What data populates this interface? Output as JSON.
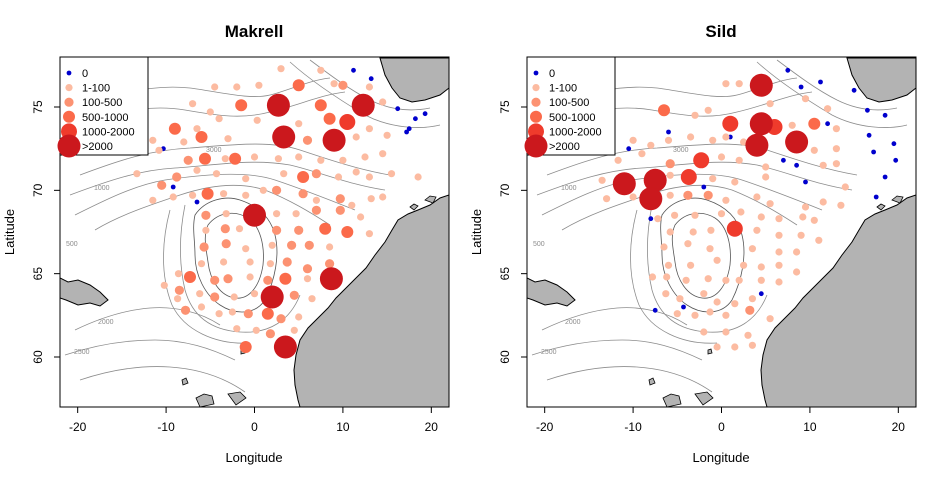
{
  "colors": {
    "zero": "#0000CD",
    "c1_100": "#FCBBA1",
    "c100_500": "#FC9272",
    "c500_1000": "#FB6A4A",
    "c1000_2000": "#EF3B2C",
    "c2000": "#CB181D",
    "land": "#B3B3B3",
    "contour": "#8C8C8C"
  },
  "legend": {
    "entries": [
      {
        "label": "0",
        "cls": 0
      },
      {
        "label": "1-100",
        "cls": 1
      },
      {
        "label": "100-500",
        "cls": 2
      },
      {
        "label": "500-1000",
        "cls": 3
      },
      {
        "label": "1000-2000",
        "cls": 4
      },
      {
        "label": ">2000",
        "cls": 5
      }
    ]
  },
  "axes": {
    "xlabel": "Longitude",
    "ylabel": "Latitude",
    "xlim": [
      -22,
      22
    ],
    "ylim": [
      57,
      78
    ],
    "xticks": [
      -20,
      -10,
      0,
      10,
      20
    ],
    "yticks": [
      60,
      65,
      70,
      75
    ]
  },
  "contour_labels": [
    "3000",
    "2000",
    "1000",
    "500",
    "2500"
  ],
  "chart_data": [
    {
      "type": "scatter",
      "title": "Makrell",
      "xlabel": "Longitude",
      "ylabel": "Latitude",
      "xlim": [
        -22,
        22
      ],
      "ylim": [
        57,
        78
      ],
      "points": [
        [
          3,
          77.3,
          1
        ],
        [
          7.5,
          77.2,
          1
        ],
        [
          9,
          76.4,
          1
        ],
        [
          11.2,
          77.2,
          0
        ],
        [
          13.2,
          76.7,
          0
        ],
        [
          16.2,
          74.9,
          0
        ],
        [
          19.3,
          74.6,
          0
        ],
        [
          18.2,
          74.3,
          0
        ],
        [
          17.5,
          73.7,
          0
        ],
        [
          17.2,
          73.5,
          0
        ],
        [
          -10.3,
          72.5,
          0
        ],
        [
          -6.5,
          69.3,
          0
        ],
        [
          -9.2,
          70.2,
          0
        ],
        [
          -4.5,
          76.2,
          1
        ],
        [
          -2,
          76.2,
          1
        ],
        [
          0.5,
          76.3,
          1
        ],
        [
          5,
          76.3,
          3
        ],
        [
          10,
          76.3,
          2
        ],
        [
          13,
          76.2,
          1
        ],
        [
          -7,
          75.2,
          1
        ],
        [
          -5,
          74.7,
          1
        ],
        [
          -1.5,
          75.1,
          3
        ],
        [
          2.7,
          75.1,
          5
        ],
        [
          7.5,
          75.1,
          3
        ],
        [
          12.3,
          75.1,
          5
        ],
        [
          14.5,
          75.3,
          1
        ],
        [
          -9,
          73.7,
          3
        ],
        [
          -6.5,
          73.7,
          1
        ],
        [
          -4,
          74.3,
          1
        ],
        [
          0.3,
          74.2,
          1
        ],
        [
          5,
          74,
          1
        ],
        [
          8.5,
          74.3,
          3
        ],
        [
          10.5,
          74.1,
          4
        ],
        [
          13,
          73.7,
          1
        ],
        [
          -11.5,
          73,
          1
        ],
        [
          -8,
          72.9,
          1
        ],
        [
          -6,
          73.2,
          3
        ],
        [
          -3,
          73.1,
          1
        ],
        [
          3.3,
          73.2,
          5
        ],
        [
          6,
          73,
          2
        ],
        [
          9,
          73,
          5
        ],
        [
          11.5,
          73.2,
          1
        ],
        [
          15,
          73.3,
          1
        ],
        [
          -10.8,
          72.4,
          1
        ],
        [
          -7.5,
          71.8,
          2
        ],
        [
          -5.6,
          71.9,
          3
        ],
        [
          -3.3,
          71.9,
          1
        ],
        [
          -2.2,
          71.9,
          3
        ],
        [
          0,
          72,
          1
        ],
        [
          2.7,
          71.9,
          1
        ],
        [
          5,
          72,
          1
        ],
        [
          7.5,
          71.8,
          1
        ],
        [
          10,
          71.8,
          1
        ],
        [
          12.5,
          72,
          1
        ],
        [
          14.5,
          72.2,
          1
        ],
        [
          -13.3,
          71,
          1
        ],
        [
          -10.5,
          70.3,
          2
        ],
        [
          -8.8,
          70.8,
          2
        ],
        [
          -6.5,
          71.2,
          1
        ],
        [
          -4.3,
          71,
          1
        ],
        [
          -1,
          70.7,
          1
        ],
        [
          3.3,
          71,
          1
        ],
        [
          5.5,
          70.8,
          3
        ],
        [
          7,
          71,
          2
        ],
        [
          9.5,
          70.8,
          1
        ],
        [
          11.5,
          71.1,
          1
        ],
        [
          13,
          70.8,
          1
        ],
        [
          15.5,
          71,
          1
        ],
        [
          18.5,
          70.8,
          1
        ],
        [
          -11.5,
          69.4,
          1
        ],
        [
          -9.2,
          69.6,
          1
        ],
        [
          -7,
          69.7,
          1
        ],
        [
          -5.3,
          69.8,
          3
        ],
        [
          -3.5,
          69.8,
          1
        ],
        [
          -1,
          69.7,
          1
        ],
        [
          1,
          70,
          1
        ],
        [
          2.5,
          70,
          2
        ],
        [
          5.5,
          69.8,
          2
        ],
        [
          7,
          69.4,
          1
        ],
        [
          9.7,
          69.5,
          2
        ],
        [
          11,
          69.1,
          1
        ],
        [
          13.2,
          69.5,
          1
        ],
        [
          14.5,
          69.6,
          1
        ],
        [
          -5.5,
          68.5,
          2
        ],
        [
          -3.2,
          68.6,
          1
        ],
        [
          -0.5,
          68.7,
          1
        ],
        [
          0,
          68.5,
          5
        ],
        [
          2.5,
          68.6,
          1
        ],
        [
          4.7,
          68.6,
          1
        ],
        [
          7,
          68.8,
          2
        ],
        [
          9.7,
          68.8,
          2
        ],
        [
          12,
          68.4,
          1
        ],
        [
          -5.5,
          67.6,
          1
        ],
        [
          -3.3,
          67.7,
          2
        ],
        [
          -1.7,
          67.7,
          1
        ],
        [
          2.5,
          67.6,
          2
        ],
        [
          5,
          67.6,
          2
        ],
        [
          8,
          67.7,
          3
        ],
        [
          10.5,
          67.5,
          3
        ],
        [
          13,
          67.4,
          1
        ],
        [
          -5.7,
          66.6,
          2
        ],
        [
          -3.2,
          66.8,
          2
        ],
        [
          -1,
          66.5,
          1
        ],
        [
          2,
          66.7,
          1
        ],
        [
          4.2,
          66.7,
          2
        ],
        [
          6.2,
          66.7,
          2
        ],
        [
          8.5,
          66.6,
          1
        ],
        [
          -6,
          65.6,
          1
        ],
        [
          -3.5,
          65.7,
          1
        ],
        [
          -0.5,
          65.7,
          1
        ],
        [
          1.8,
          65.6,
          1
        ],
        [
          3.7,
          65.7,
          2
        ],
        [
          6,
          65.3,
          2
        ],
        [
          8.5,
          65.6,
          2
        ],
        [
          -8.6,
          65,
          1
        ],
        [
          -7.3,
          64.8,
          3
        ],
        [
          -4.5,
          64.6,
          2
        ],
        [
          -3,
          64.7,
          2
        ],
        [
          -0.5,
          64.8,
          1
        ],
        [
          1.5,
          64.6,
          2
        ],
        [
          3.5,
          64.7,
          3
        ],
        [
          6,
          64.7,
          1
        ],
        [
          8.7,
          64.7,
          5
        ],
        [
          -10.2,
          64.3,
          1
        ],
        [
          -8.5,
          64,
          2
        ],
        [
          -6.2,
          63.8,
          1
        ],
        [
          -4.5,
          63.6,
          2
        ],
        [
          -2.3,
          63.6,
          1
        ],
        [
          0,
          63.8,
          1
        ],
        [
          2,
          63.6,
          5
        ],
        [
          4.5,
          63.7,
          2
        ],
        [
          6.5,
          63.5,
          1
        ],
        [
          -8.7,
          63.5,
          1
        ],
        [
          -7.8,
          62.8,
          2
        ],
        [
          -6,
          63,
          1
        ],
        [
          -4,
          62.6,
          1
        ],
        [
          -2.5,
          62.7,
          1
        ],
        [
          -0.7,
          62.6,
          2
        ],
        [
          1.5,
          62.6,
          3
        ],
        [
          3,
          62.3,
          2
        ],
        [
          5,
          62.4,
          1
        ],
        [
          -2,
          61.7,
          1
        ],
        [
          0.2,
          61.6,
          1
        ],
        [
          1.8,
          61.4,
          2
        ],
        [
          4.5,
          61.6,
          1
        ],
        [
          -1,
          60.6,
          3
        ],
        [
          3.5,
          60.6,
          5
        ],
        [
          -1.2,
          60.5,
          1
        ]
      ]
    },
    {
      "type": "scatter",
      "title": "Sild",
      "xlabel": "Longitude",
      "ylabel": "Latitude",
      "xlim": [
        -22,
        22
      ],
      "ylim": [
        57,
        78
      ],
      "points": [
        [
          7.5,
          77.2,
          0
        ],
        [
          9,
          76.2,
          0
        ],
        [
          11.2,
          76.5,
          0
        ],
        [
          15,
          76,
          0
        ],
        [
          18.5,
          74.5,
          0
        ],
        [
          16.5,
          74.8,
          0
        ],
        [
          16.7,
          73.3,
          0
        ],
        [
          17.2,
          72.3,
          0
        ],
        [
          19.5,
          72.8,
          0
        ],
        [
          19.7,
          71.8,
          0
        ],
        [
          -10.5,
          72.5,
          0
        ],
        [
          -6,
          73.5,
          0
        ],
        [
          1,
          73.2,
          0
        ],
        [
          7,
          71.8,
          0
        ],
        [
          8.5,
          71.5,
          0
        ],
        [
          9.5,
          70.5,
          0
        ],
        [
          12,
          74,
          0
        ],
        [
          -2,
          70.2,
          0
        ],
        [
          -8,
          68.3,
          0
        ],
        [
          -7.5,
          62.8,
          0
        ],
        [
          -4.3,
          63,
          0
        ],
        [
          4.5,
          63.8,
          0
        ],
        [
          18.5,
          70.8,
          0
        ],
        [
          17.5,
          69.6,
          0
        ],
        [
          0.5,
          76.4,
          1
        ],
        [
          2,
          76.4,
          1
        ],
        [
          4.5,
          76.3,
          5
        ],
        [
          5.5,
          75.2,
          1
        ],
        [
          9.5,
          75.5,
          1
        ],
        [
          12,
          74.9,
          1
        ],
        [
          13,
          73.7,
          1
        ],
        [
          -6.5,
          74.8,
          3
        ],
        [
          -3,
          74.5,
          1
        ],
        [
          -1.5,
          74.8,
          1
        ],
        [
          1,
          74,
          4
        ],
        [
          4.5,
          74,
          5
        ],
        [
          6,
          73.8,
          4
        ],
        [
          8,
          73.9,
          1
        ],
        [
          10.5,
          74,
          3
        ],
        [
          -10,
          73,
          1
        ],
        [
          -8,
          72.7,
          1
        ],
        [
          -6,
          73,
          1
        ],
        [
          -3.5,
          73.2,
          1
        ],
        [
          -1,
          73,
          1
        ],
        [
          0.5,
          73.2,
          1
        ],
        [
          2.5,
          72.9,
          1
        ],
        [
          4,
          72.7,
          5
        ],
        [
          8.5,
          72.9,
          5
        ],
        [
          10.5,
          72.4,
          1
        ],
        [
          13,
          72.5,
          1
        ],
        [
          -11.7,
          71.8,
          1
        ],
        [
          -9,
          72.2,
          1
        ],
        [
          -5.8,
          71.6,
          2
        ],
        [
          -2.3,
          71.8,
          4
        ],
        [
          0,
          72,
          1
        ],
        [
          2,
          71.8,
          1
        ],
        [
          5,
          71.4,
          1
        ],
        [
          11.5,
          71.5,
          1
        ],
        [
          13,
          71.6,
          1
        ],
        [
          -13.5,
          70.6,
          1
        ],
        [
          -11,
          70.4,
          5
        ],
        [
          -7.5,
          70.6,
          5
        ],
        [
          -5.8,
          70.9,
          1
        ],
        [
          -3.7,
          70.8,
          4
        ],
        [
          -1,
          70.7,
          1
        ],
        [
          1.5,
          70.5,
          1
        ],
        [
          5,
          70.8,
          1
        ],
        [
          14,
          70.2,
          1
        ],
        [
          -13,
          69.5,
          1
        ],
        [
          -10,
          69.6,
          1
        ],
        [
          -8,
          69.5,
          5
        ],
        [
          -5.8,
          69.7,
          1
        ],
        [
          -3.8,
          69.7,
          2
        ],
        [
          -1.5,
          69.7,
          2
        ],
        [
          0.5,
          69.4,
          1
        ],
        [
          4,
          69.6,
          1
        ],
        [
          5.5,
          69.2,
          1
        ],
        [
          9.5,
          69,
          1
        ],
        [
          11.5,
          69.3,
          1
        ],
        [
          13.5,
          69.1,
          1
        ],
        [
          -7.2,
          68.3,
          1
        ],
        [
          -5.3,
          68.5,
          1
        ],
        [
          -3,
          68.5,
          1
        ],
        [
          0,
          68.6,
          1
        ],
        [
          2.2,
          68.7,
          1
        ],
        [
          4.5,
          68.4,
          1
        ],
        [
          6.5,
          68.3,
          1
        ],
        [
          9.2,
          68.4,
          1
        ],
        [
          10.5,
          68.2,
          1
        ],
        [
          -5.8,
          67.5,
          1
        ],
        [
          -3.2,
          67.5,
          1
        ],
        [
          -1.2,
          67.6,
          1
        ],
        [
          1.5,
          67.7,
          4
        ],
        [
          4,
          67.6,
          1
        ],
        [
          6.5,
          67.3,
          1
        ],
        [
          9,
          67.3,
          1
        ],
        [
          11,
          67,
          1
        ],
        [
          -6.5,
          66.6,
          1
        ],
        [
          -3.8,
          66.8,
          1
        ],
        [
          -1.3,
          66.5,
          1
        ],
        [
          3.5,
          66.5,
          1
        ],
        [
          6.5,
          66.3,
          1
        ],
        [
          8.5,
          66.3,
          1
        ],
        [
          -6,
          65.5,
          1
        ],
        [
          -3.5,
          65.5,
          1
        ],
        [
          -0.5,
          65.8,
          1
        ],
        [
          2.5,
          65.5,
          1
        ],
        [
          4.5,
          65.4,
          1
        ],
        [
          6.5,
          65.5,
          1
        ],
        [
          8.5,
          65.1,
          1
        ],
        [
          -7.8,
          64.8,
          1
        ],
        [
          -6.2,
          64.8,
          1
        ],
        [
          -4,
          64.6,
          1
        ],
        [
          -1.5,
          64.7,
          1
        ],
        [
          0.5,
          64.6,
          1
        ],
        [
          2,
          64.6,
          1
        ],
        [
          4.5,
          64.6,
          1
        ],
        [
          6.5,
          64.5,
          1
        ],
        [
          -6.3,
          63.8,
          1
        ],
        [
          -4.7,
          63.5,
          1
        ],
        [
          -2,
          63.8,
          1
        ],
        [
          -0.5,
          63.3,
          1
        ],
        [
          1.5,
          63.2,
          1
        ],
        [
          3.5,
          63.5,
          1
        ],
        [
          -5,
          62.6,
          1
        ],
        [
          -3,
          62.5,
          1
        ],
        [
          -1.3,
          62.7,
          1
        ],
        [
          0.5,
          62.5,
          1
        ],
        [
          3.2,
          62.8,
          2
        ],
        [
          5.5,
          62.3,
          1
        ],
        [
          -2,
          61.5,
          1
        ],
        [
          0.5,
          61.5,
          1
        ],
        [
          3,
          61.3,
          1
        ],
        [
          -0.5,
          60.6,
          1
        ],
        [
          1.5,
          60.6,
          1
        ],
        [
          3.5,
          60.7,
          1
        ]
      ]
    }
  ]
}
